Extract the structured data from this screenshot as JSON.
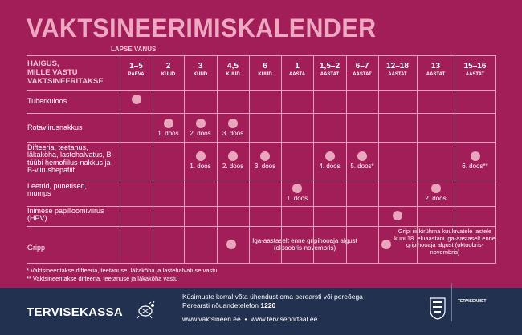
{
  "title": "VAKTSINEERIMISKALENDER",
  "age_label": "LAPSE VANUS",
  "disease_header": [
    "HAIGUS,",
    "MILLE VASTU",
    "VAKTSINEERITAKSE"
  ],
  "columns": [
    {
      "n": "1–5",
      "u": "PÄEVA"
    },
    {
      "n": "2",
      "u": "KUUD"
    },
    {
      "n": "3",
      "u": "KUUD"
    },
    {
      "n": "4,5",
      "u": "KUUD"
    },
    {
      "n": "6",
      "u": "KUUD"
    },
    {
      "n": "1",
      "u": "AASTA"
    },
    {
      "n": "1,5–2",
      "u": "AASTAT"
    },
    {
      "n": "6–7",
      "u": "AASTAT"
    },
    {
      "n": "12–18",
      "u": "AASTAT"
    },
    {
      "n": "13",
      "u": "AASTAT"
    },
    {
      "n": "15–16",
      "u": "AASTAT"
    }
  ],
  "rows": [
    {
      "label": "Tuberkuloos"
    },
    {
      "label": "Rotaviirusnakkus",
      "doses": [
        "1. doos",
        "2. doos",
        "3. doos"
      ]
    },
    {
      "label": "Difteeria, teetanus, läkaköha, lastehalvatus, B-tüübi hemofiilus-nakkus ja B-viirushepatiit",
      "doses": [
        "1. doos",
        "2. doos",
        "3. doos",
        "4. doos",
        "5. doos*",
        "6. doos**"
      ]
    },
    {
      "label": "Leetrid, punetised, mumps",
      "doses": [
        "1. doos",
        "2. doos"
      ]
    },
    {
      "label": "Inimese papilloomiviirus (HPV)"
    },
    {
      "label": "Gripp",
      "text1": "Iga-aastaselt enne gripihooaja algust (oktoobris-novembris)",
      "text2": "Gripi riskirühma kuuluvatele lastele kuni 18. eluaastani iga-aastaselt enne gripihooaja algust (oktoobris-novembris)"
    }
  ],
  "footnotes": [
    "* Vaktsineeritakse difteeria, teetanuse, läkaköha ja lastehalvatuse vastu",
    "** Vaktsineeritakse difteeria, teetanuse ja läkaköha vastu"
  ],
  "footer": {
    "logo": "TERVISEKASSA",
    "contact_line": "Küsimuste korral võta ühendust oma perearsti või perеõega",
    "phone_label": "Perearsti nõuandetelefon",
    "phone": "1220",
    "link1": "www.vaktsineeri.ee",
    "link2": "www.terviseportaal.ee",
    "agency": "TERVISEAMET"
  },
  "colors": {
    "background": "#a11e58",
    "dot": "#eaa6bc",
    "title": "#eea8c1",
    "footer": "#21314f"
  }
}
